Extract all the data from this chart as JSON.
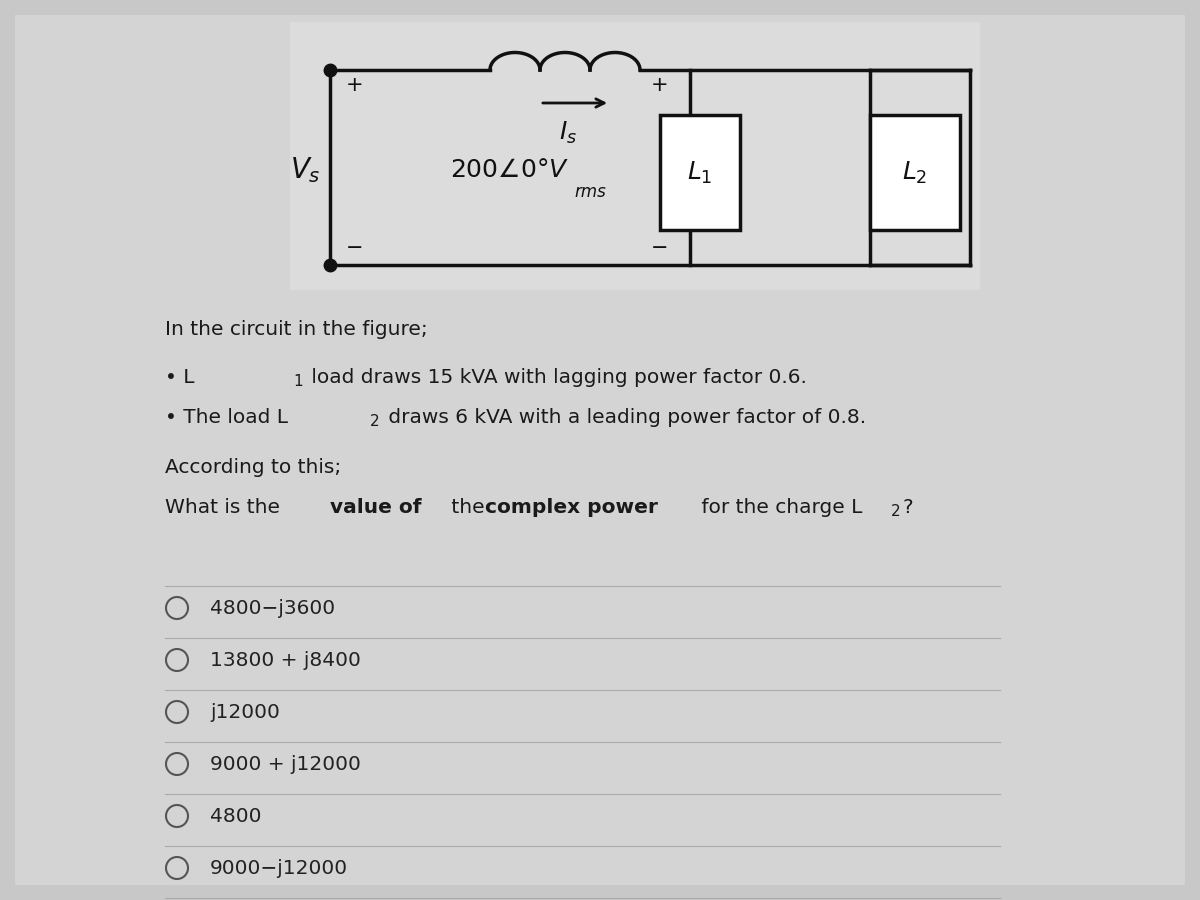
{
  "bg_outer": "#c8c8c8",
  "bg_inner": "#d8d8d8",
  "circuit_bg": "#e8e8e8",
  "wire_color": "#111111",
  "text_color": "#1a1a1a",
  "option_color": "#222222",
  "separator_color": "#aaaaaa",
  "intro_text": "In the circuit in the figure;",
  "bullet1_pre": "• L",
  "bullet1_sub": "1",
  "bullet1_post": " load draws 15 kVA with lagging power factor 0.6.",
  "bullet2_pre": "• The load L",
  "bullet2_sub": "2",
  "bullet2_post": " draws 6 kVA with a leading power factor of 0.8.",
  "according": "According to this;",
  "options": [
    "4800−j3600",
    "13800 + j8400",
    "j12000",
    "9000 + j12000",
    "4800",
    "9000−j12000"
  ],
  "figsize": [
    12.0,
    9.0
  ],
  "dpi": 100
}
